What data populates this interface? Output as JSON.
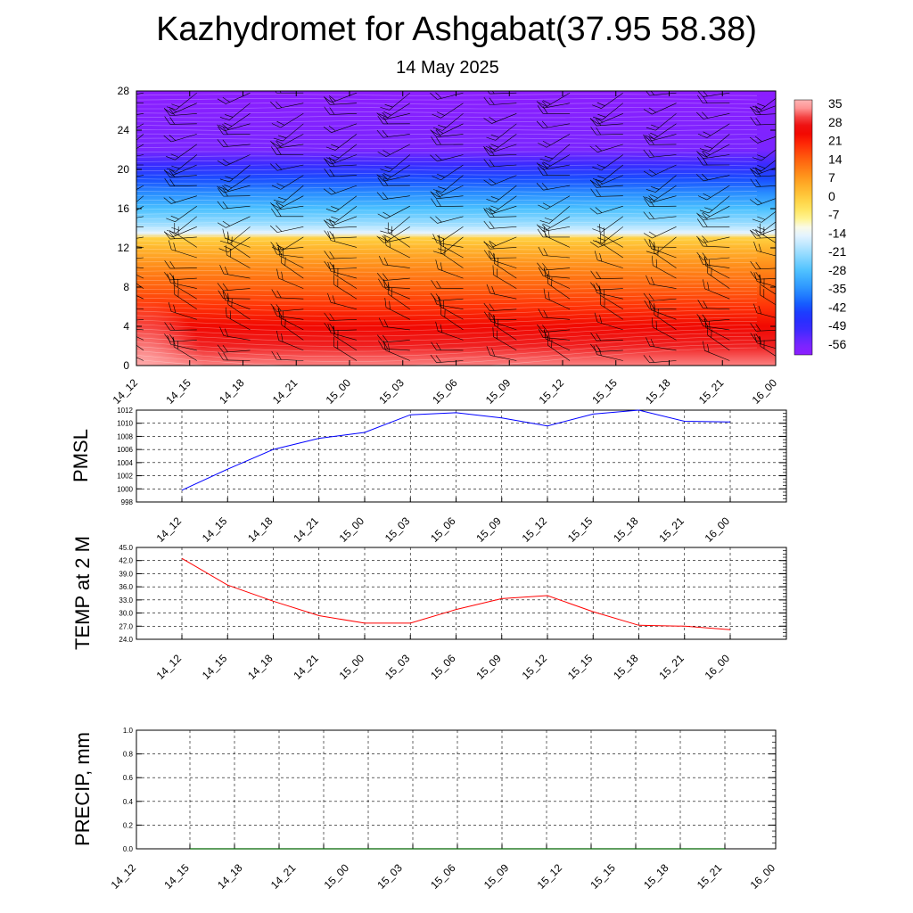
{
  "header": {
    "title": "Kazhydromet for Ashgabat(37.95 58.38)",
    "subtitle": "14 May 2025"
  },
  "chart_data": [
    {
      "type": "heatmap",
      "name": "temperature-height",
      "x_ticks": [
        "14_12",
        "14_15",
        "14_18",
        "14_21",
        "15_00",
        "15_03",
        "15_06",
        "15_09",
        "15_12",
        "15_15",
        "15_18",
        "15_21",
        "16_00"
      ],
      "y_ticks": [
        "0",
        "4",
        "8",
        "12",
        "16",
        "20",
        "24",
        "28"
      ],
      "ylim": [
        0,
        28
      ],
      "colorbar": {
        "labels": [
          "35",
          "28",
          "21",
          "14",
          "7",
          "0",
          "-7",
          "-14",
          "-21",
          "-28",
          "-35",
          "-42",
          "-49",
          "-56"
        ],
        "range": [
          -60,
          38
        ]
      },
      "temperature_profile": [
        {
          "height": 0,
          "value": 34
        },
        {
          "height": 2,
          "value": 30
        },
        {
          "height": 4,
          "value": 25
        },
        {
          "height": 6,
          "value": 20
        },
        {
          "height": 8,
          "value": 15
        },
        {
          "height": 10,
          "value": 10
        },
        {
          "height": 12,
          "value": 4
        },
        {
          "height": 13,
          "value": 0
        },
        {
          "height": 13.5,
          "value": -14
        },
        {
          "height": 14.5,
          "value": -21
        },
        {
          "height": 16,
          "value": -28
        },
        {
          "height": 17.5,
          "value": -35
        },
        {
          "height": 19,
          "value": -42
        },
        {
          "height": 20.5,
          "value": -50
        },
        {
          "height": 22,
          "value": -56
        },
        {
          "height": 28,
          "value": -60
        }
      ],
      "wind_barbs": "every time step, every ~1 km level"
    },
    {
      "type": "line",
      "name": "pmsl",
      "ylabel": "PMSL",
      "x": [
        "14_12",
        "14_15",
        "14_18",
        "14_21",
        "15_00",
        "15_03",
        "15_06",
        "15_09",
        "15_12",
        "15_15",
        "15_18",
        "15_21",
        "16_00"
      ],
      "values": [
        999.8,
        1003.0,
        1006.0,
        1007.7,
        1008.6,
        1011.3,
        1011.6,
        1010.8,
        1009.6,
        1011.4,
        1012.0,
        1010.3,
        1010.2
      ],
      "ylim": [
        998,
        1012
      ],
      "y_ticks": [
        "998",
        "1000",
        "1002",
        "1004",
        "1006",
        "1008",
        "1010",
        "1012"
      ],
      "line_color": "#0000ff",
      "grid": true
    },
    {
      "type": "line",
      "name": "temp2m",
      "ylabel": "TEMP at 2 M",
      "x": [
        "14_12",
        "14_15",
        "14_18",
        "14_21",
        "15_00",
        "15_03",
        "15_06",
        "15_09",
        "15_12",
        "15_15",
        "15_18",
        "15_21",
        "16_00"
      ],
      "values": [
        42.5,
        36.4,
        32.7,
        29.4,
        27.7,
        27.7,
        30.8,
        33.3,
        34.0,
        30.3,
        27.2,
        27.0,
        26.2
      ],
      "ylim": [
        24,
        45
      ],
      "y_ticks": [
        "24.0",
        "27.0",
        "30.0",
        "33.0",
        "36.0",
        "39.0",
        "42.0",
        "45.0"
      ],
      "line_color": "#ff0000",
      "grid": true
    },
    {
      "type": "line",
      "name": "precip",
      "ylabel": "PRECIP, mm",
      "x": [
        "14_12",
        "14_15",
        "14_18",
        "14_21",
        "15_00",
        "15_03",
        "15_06",
        "15_09",
        "15_12",
        "15_15",
        "15_18",
        "15_21",
        "16_00"
      ],
      "values": [
        0,
        0,
        0,
        0,
        0,
        0,
        0,
        0,
        0,
        0,
        0,
        0,
        0
      ],
      "ylim": [
        0,
        1
      ],
      "y_ticks": [
        "0.0",
        "0.2",
        "0.4",
        "0.6",
        "0.8",
        "1.0"
      ],
      "line_color": "#006400",
      "grid": true
    }
  ]
}
